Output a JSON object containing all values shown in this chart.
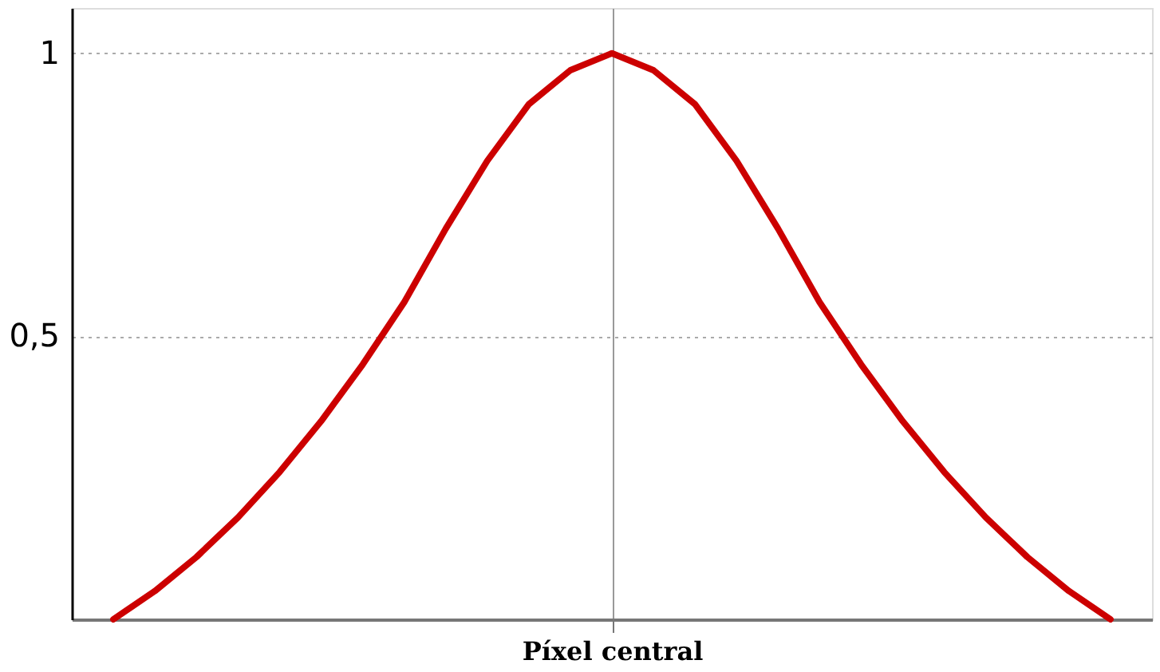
{
  "chart_data": {
    "type": "line",
    "categories": [
      null,
      null,
      null,
      null,
      null,
      null,
      null,
      null,
      null,
      null,
      null,
      null,
      "Píxel central",
      null,
      null,
      null,
      null,
      null,
      null,
      null,
      null,
      null,
      null,
      null,
      null
    ],
    "series": [
      {
        "color": "#cc0000",
        "values": [
          0.0,
          0.05,
          0.11,
          0.18,
          0.26,
          0.35,
          0.45,
          0.56,
          0.69,
          0.81,
          0.91,
          0.97,
          1.0,
          0.97,
          0.91,
          0.81,
          0.69,
          0.56,
          0.45,
          0.35,
          0.26,
          0.18,
          0.11,
          0.05,
          0.0
        ]
      }
    ],
    "ylim": [
      0,
      1.08
    ],
    "yticks": [
      {
        "value": 0.5,
        "label": "0,5"
      },
      1
    ],
    "grid": true,
    "line_style": "solid",
    "marker": "none"
  }
}
